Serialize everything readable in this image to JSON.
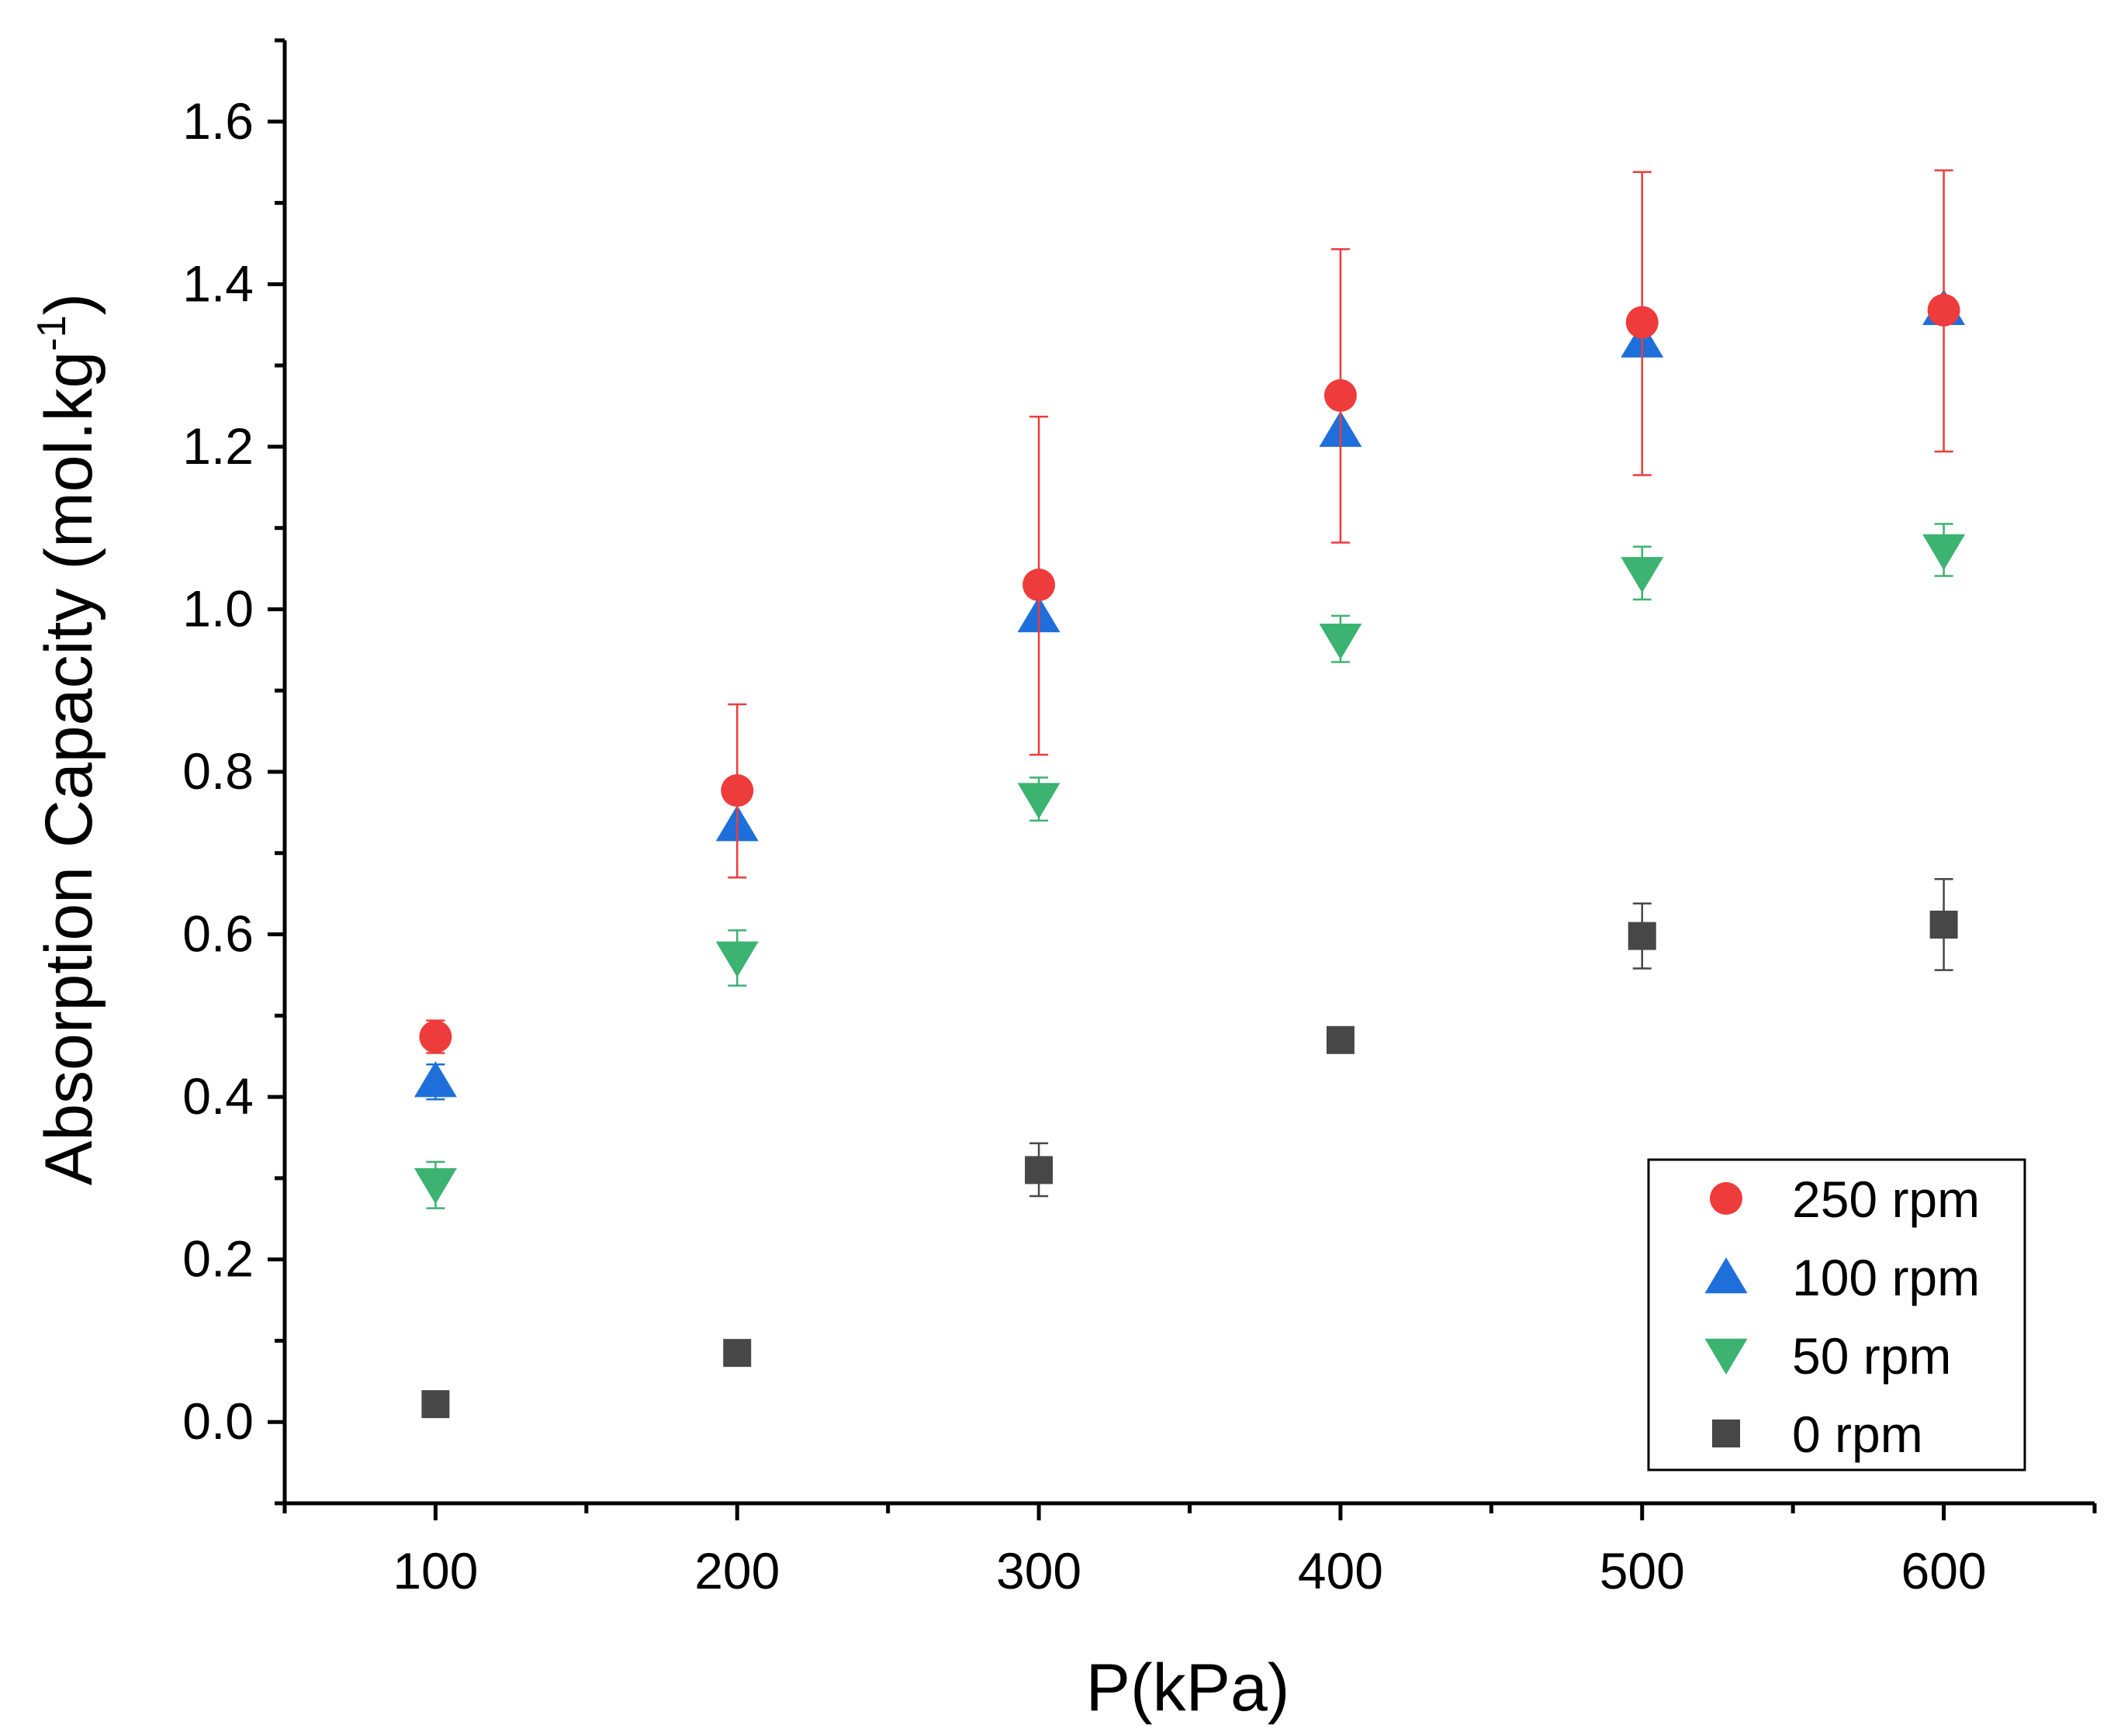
{
  "chart_data": {
    "type": "scatter",
    "title": "",
    "xlabel": "P(kPa)",
    "ylabel": "Absorption Capacity (mol.kg",
    "ylabel_superscript": "-1",
    "ylabel_close": ")",
    "xlim": [
      50,
      650
    ],
    "ylim": [
      -0.1,
      1.7
    ],
    "x_ticks": [
      100,
      200,
      300,
      400,
      500,
      600
    ],
    "x_tick_labels": [
      "100",
      "200",
      "300",
      "400",
      "500",
      "600"
    ],
    "y_ticks": [
      0.0,
      0.2,
      0.4,
      0.6,
      0.8,
      1.0,
      1.2,
      1.4,
      1.6
    ],
    "y_tick_labels": [
      "0.0",
      "0.2",
      "0.4",
      "0.6",
      "0.8",
      "1.0",
      "1.2",
      "1.4",
      "1.6"
    ],
    "grid": false,
    "legend_position": "bottom-right",
    "x": [
      100,
      200,
      300,
      400,
      500,
      600
    ],
    "series": [
      {
        "name": "250 rpm",
        "marker": "circle",
        "color": "#EE3B3B",
        "values": [
          0.474,
          0.777,
          1.03,
          1.263,
          1.353,
          1.368
        ],
        "err_low": [
          0.454,
          0.67,
          0.821,
          1.082,
          1.165,
          1.194
        ],
        "err_high": [
          0.494,
          0.883,
          1.237,
          1.443,
          1.538,
          1.54
        ]
      },
      {
        "name": "100 rpm",
        "marker": "triangle-up",
        "color": "#1F6FDB",
        "values": [
          0.42,
          0.735,
          0.992,
          1.22,
          1.33,
          1.37
        ],
        "err_low": [
          0.397,
          0.735,
          0.992,
          1.22,
          1.33,
          1.37
        ],
        "err_high": [
          0.44,
          0.735,
          0.992,
          1.22,
          1.33,
          1.37
        ]
      },
      {
        "name": "50 rpm",
        "marker": "triangle-down",
        "color": "#3CB371",
        "values": [
          0.292,
          0.571,
          0.766,
          0.962,
          1.044,
          1.072
        ],
        "err_low": [
          0.263,
          0.537,
          0.74,
          0.935,
          1.012,
          1.041
        ],
        "err_high": [
          0.32,
          0.605,
          0.793,
          0.992,
          1.077,
          1.105
        ]
      },
      {
        "name": "0 rpm",
        "marker": "square",
        "color": "#474747",
        "values": [
          0.022,
          0.085,
          0.31,
          0.47,
          0.598,
          0.612
        ],
        "err_low": [
          0.022,
          0.085,
          0.278,
          0.47,
          0.558,
          0.556
        ],
        "err_high": [
          0.022,
          0.085,
          0.343,
          0.47,
          0.638,
          0.668
        ]
      }
    ],
    "legend_order": [
      0,
      1,
      2,
      3
    ]
  }
}
